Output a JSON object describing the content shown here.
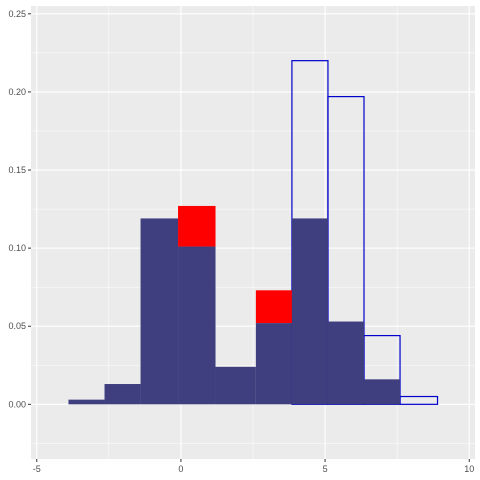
{
  "chart_data": {
    "type": "bar",
    "title": "",
    "xlabel": "",
    "ylabel": "",
    "xlim": [
      -5.2,
      10.2
    ],
    "ylim": [
      -0.035,
      0.255
    ],
    "grid": true,
    "legend": "none",
    "colors": {
      "panel": "#ebebeb",
      "grid_major": "#ffffff",
      "filled_bar": "#3f3f7f",
      "highlight_bar": "#ff0000",
      "outline_bar": "#0000cd"
    },
    "x_ticks": [
      {
        "value": -5,
        "label": "-5"
      },
      {
        "value": 0,
        "label": "0"
      },
      {
        "value": 5,
        "label": "5"
      },
      {
        "value": 10,
        "label": "10"
      }
    ],
    "y_ticks": [
      {
        "value": 0.0,
        "label": "0.00"
      },
      {
        "value": 0.05,
        "label": "0.05"
      },
      {
        "value": 0.1,
        "label": "0.10"
      },
      {
        "value": 0.15,
        "label": "0.15"
      },
      {
        "value": 0.2,
        "label": "0.20"
      },
      {
        "value": 0.25,
        "label": "0.25"
      }
    ],
    "series": [
      {
        "style": "outline",
        "bins": [
          {
            "x0": 7.6,
            "x1": 8.9,
            "y": 0.005
          },
          {
            "x0": 6.35,
            "x1": 7.6,
            "y": 0.044
          },
          {
            "x0": 5.1,
            "x1": 6.35,
            "y": 0.197
          },
          {
            "x0": 3.85,
            "x1": 5.1,
            "y": 0.22
          }
        ]
      },
      {
        "style": "highlight",
        "bins": [
          {
            "x0": -0.1,
            "x1": 1.2,
            "y0": 0.101,
            "y1": 0.127
          },
          {
            "x0": 2.6,
            "x1": 3.85,
            "y0": 0.052,
            "y1": 0.073
          }
        ]
      },
      {
        "style": "filled",
        "bins": [
          {
            "x0": -3.9,
            "x1": -2.65,
            "y": 0.003
          },
          {
            "x0": -2.65,
            "x1": -1.4,
            "y": 0.013
          },
          {
            "x0": -1.4,
            "x1": -0.1,
            "y": 0.119
          },
          {
            "x0": -0.1,
            "x1": 1.2,
            "y": 0.101
          },
          {
            "x0": 1.2,
            "x1": 2.6,
            "y": 0.024
          },
          {
            "x0": 2.6,
            "x1": 3.85,
            "y": 0.052
          },
          {
            "x0": 3.85,
            "x1": 5.1,
            "y": 0.119
          },
          {
            "x0": 5.1,
            "x1": 6.35,
            "y": 0.053
          },
          {
            "x0": 6.35,
            "x1": 7.6,
            "y": 0.016
          }
        ]
      }
    ]
  }
}
